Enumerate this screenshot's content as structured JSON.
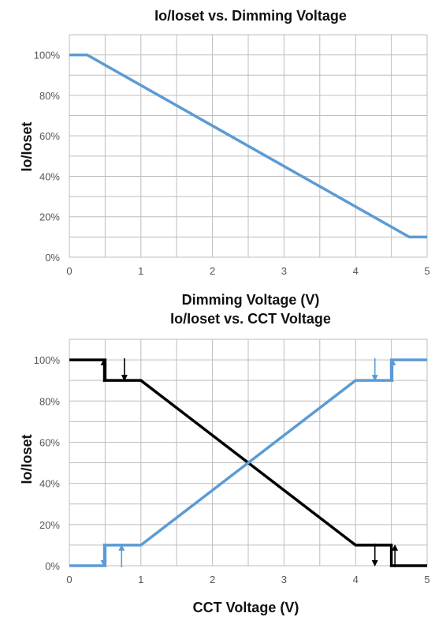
{
  "chart_data": [
    {
      "type": "line",
      "title": "Io/Ioset vs. Dimming Voltage",
      "xlabel": "Dimming Voltage (V)",
      "ylabel": "Io/Ioset",
      "xlim": [
        0,
        5
      ],
      "ylim": [
        0,
        110
      ],
      "x_ticks": [
        "0",
        "1",
        "2",
        "3",
        "4",
        "5"
      ],
      "y_ticks": [
        "0%",
        "20%",
        "40%",
        "60%",
        "80%",
        "100%"
      ],
      "y_tick_values": [
        0,
        20,
        40,
        60,
        80,
        100
      ],
      "x_minor_grid": [
        0.5,
        1.5,
        2.5,
        3.5,
        4.5
      ],
      "y_minor_grid": [
        10,
        30,
        50,
        70,
        90,
        110
      ],
      "grid": true,
      "series": [
        {
          "color": "#5b9bd5",
          "x": [
            0,
            0.25,
            4.75,
            5
          ],
          "y": [
            100,
            100,
            10,
            10
          ]
        }
      ]
    },
    {
      "type": "line",
      "title": "Io/Ioset vs. CCT Voltage",
      "xlabel": "CCT Voltage (V)",
      "ylabel": "Io/Ioset",
      "xlim": [
        0,
        5
      ],
      "ylim": [
        0,
        110
      ],
      "x_ticks": [
        "0",
        "1",
        "2",
        "3",
        "4",
        "5"
      ],
      "y_ticks": [
        "0%",
        "20%",
        "40%",
        "60%",
        "80%",
        "100%"
      ],
      "y_tick_values": [
        0,
        20,
        40,
        60,
        80,
        100
      ],
      "x_minor_grid": [
        0.5,
        1.5,
        2.5,
        3.5,
        4.5
      ],
      "y_minor_grid": [
        10,
        30,
        50,
        70,
        90,
        110
      ],
      "grid": true,
      "series": [
        {
          "color": "#000000",
          "x": [
            0,
            0.5,
            0.5,
            1,
            4,
            4.5,
            4.5,
            5
          ],
          "y": [
            100,
            100,
            90,
            90,
            10,
            10,
            0,
            0
          ]
        },
        {
          "color": "#5b9bd5",
          "x": [
            0,
            0.5,
            0.5,
            1,
            4,
            4.5,
            4.5,
            5
          ],
          "y": [
            0,
            0,
            10,
            10,
            90,
            90,
            100,
            100
          ]
        }
      ],
      "hysteresis_arrows": [
        {
          "color": "#000000",
          "x": 0.48,
          "from": 90,
          "to": 100
        },
        {
          "color": "#000000",
          "x": 0.77,
          "from": 100,
          "to": 90
        },
        {
          "color": "#000000",
          "x": 4.27,
          "from": 10,
          "to": 0
        },
        {
          "color": "#000000",
          "x": 4.55,
          "from": 0,
          "to": 10
        },
        {
          "color": "#5b9bd5",
          "x": 0.48,
          "from": 10,
          "to": 0
        },
        {
          "color": "#5b9bd5",
          "x": 0.73,
          "from": 0,
          "to": 10
        },
        {
          "color": "#5b9bd5",
          "x": 4.27,
          "from": 100,
          "to": 90
        },
        {
          "color": "#5b9bd5",
          "x": 4.52,
          "from": 90,
          "to": 100
        }
      ]
    }
  ]
}
